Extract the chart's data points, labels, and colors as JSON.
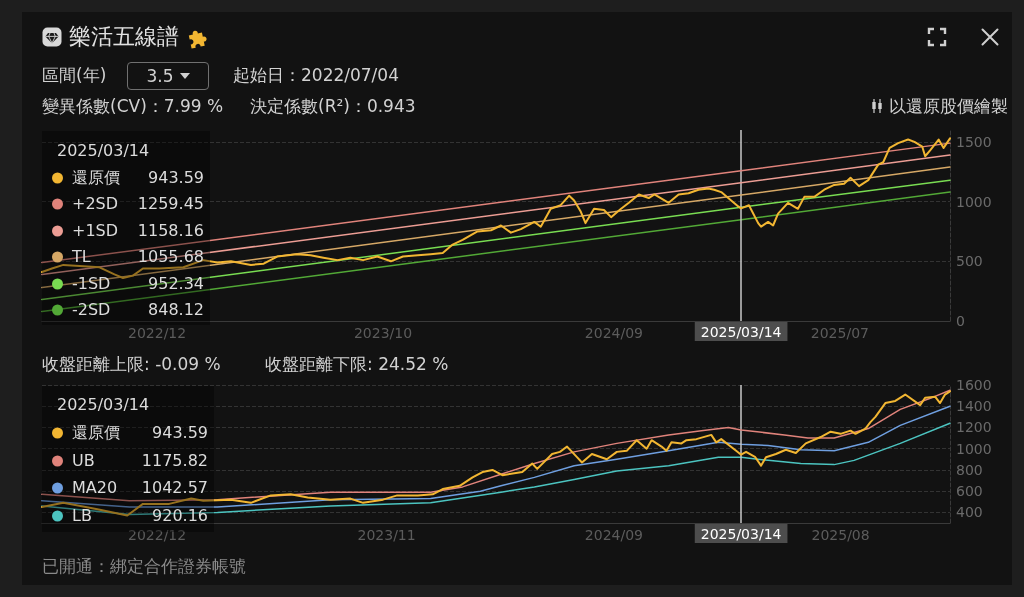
{
  "chart_data": [
    {
      "type": "line",
      "title": "樂活五線譜",
      "annotations": [
        "區間(年)",
        "3.5",
        "起始日：2022/07/04",
        "變異係數(CV)：7.99 %",
        "決定係數(R²)：0.943",
        "以還原股價繪製",
        "943.59",
        "1259.45",
        "1158.16",
        "1055.68",
        "952.34",
        "848.12"
      ],
      "xlim": [
        "2022-07-04",
        "2026-01-02"
      ],
      "xticks": [
        {
          "value": "2022-12-13",
          "label": "2022/12"
        },
        {
          "value": "2023-10-27",
          "label": "2023/10"
        },
        {
          "value": "2024-09-16",
          "label": "2024/09"
        },
        {
          "value": "2025-07-31",
          "label": "2025/07"
        }
      ],
      "ylim": [
        0,
        1600
      ],
      "yticks": [
        0,
        500,
        1000,
        1500
      ],
      "grid": "y",
      "legend": "left",
      "ref_lines": [
        {
          "axis": "x",
          "value": "2025-03-14",
          "label": "2025/03/14",
          "color": "#c8c8c8"
        }
      ],
      "series": [
        {
          "name": "還原價",
          "color": "#f2b632",
          "x": [
            "2022-07-04",
            "2022-07-18",
            "2022-08-03",
            "2022-08-26",
            "2022-09-23",
            "2022-10-14",
            "2022-10-26",
            "2022-11-09",
            "2022-11-23",
            "2022-12-16",
            "2023-01-19",
            "2023-02-16",
            "2023-03-08",
            "2023-03-27",
            "2023-04-24",
            "2023-05-12",
            "2023-05-31",
            "2023-06-28",
            "2023-07-17",
            "2023-08-04",
            "2023-08-24",
            "2023-09-11",
            "2023-09-29",
            "2023-10-19",
            "2023-11-07",
            "2023-11-24",
            "2023-12-15",
            "2024-01-02",
            "2024-01-19",
            "2024-02-02",
            "2024-02-16",
            "2024-03-08",
            "2024-03-27",
            "2024-04-10",
            "2024-04-24",
            "2024-05-08",
            "2024-05-27",
            "2024-06-05",
            "2024-06-19",
            "2024-07-03",
            "2024-07-15",
            "2024-07-22",
            "2024-07-31",
            "2024-08-07",
            "2024-08-19",
            "2024-09-02",
            "2024-09-12",
            "2024-09-26",
            "2024-10-07",
            "2024-10-21",
            "2024-11-04",
            "2024-11-12",
            "2024-12-02",
            "2024-12-16",
            "2024-12-30",
            "2025-01-13",
            "2025-01-27",
            "2025-02-04",
            "2025-02-14",
            "2025-02-28",
            "2025-03-10",
            "2025-03-14",
            "2025-03-25",
            "2025-04-07",
            "2025-04-11",
            "2025-04-21",
            "2025-04-28",
            "2025-05-05",
            "2025-05-19",
            "2025-06-02",
            "2025-06-11",
            "2025-06-25",
            "2025-07-09",
            "2025-07-23",
            "2025-08-06",
            "2025-08-15",
            "2025-08-27",
            "2025-09-09",
            "2025-09-23",
            "2025-09-30",
            "2025-10-09",
            "2025-10-21",
            "2025-11-04",
            "2025-11-13",
            "2025-11-24",
            "2025-11-28",
            "2025-12-05",
            "2025-12-17",
            "2025-12-24",
            "2026-01-02"
          ],
          "values": [
            410,
            440,
            470,
            460,
            450,
            390,
            360,
            380,
            440,
            440,
            450,
            510,
            490,
            500,
            470,
            480,
            540,
            560,
            550,
            530,
            510,
            530,
            510,
            540,
            500,
            540,
            550,
            560,
            570,
            640,
            680,
            750,
            760,
            800,
            740,
            770,
            830,
            790,
            940,
            970,
            1050,
            1010,
            920,
            820,
            940,
            930,
            870,
            940,
            990,
            1060,
            1030,
            1060,
            990,
            1060,
            1070,
            1100,
            1110,
            1100,
            1080,
            1010,
            960,
            943.59,
            970,
            820,
            790,
            830,
            800,
            900,
            990,
            940,
            1040,
            1040,
            1100,
            1140,
            1150,
            1200,
            1130,
            1180,
            1310,
            1330,
            1450,
            1490,
            1520,
            1500,
            1460,
            1380,
            1430,
            1520,
            1450,
            1530
          ]
        },
        {
          "name": "+2SD",
          "color": "#e0837b",
          "x": [
            "2022-07-04",
            "2025-03-14",
            "2026-01-02"
          ],
          "values": [
            490,
            1259.45,
            1490
          ]
        },
        {
          "name": "+1SD",
          "color": "#ec9d94",
          "x": [
            "2022-07-04",
            "2025-03-14",
            "2026-01-02"
          ],
          "values": [
            390,
            1158.16,
            1390
          ]
        },
        {
          "name": "TL",
          "color": "#d6a866",
          "x": [
            "2022-07-04",
            "2025-03-14",
            "2026-01-02"
          ],
          "values": [
            280,
            1055.68,
            1290
          ]
        },
        {
          "name": "-1SD",
          "color": "#79dc52",
          "x": [
            "2022-07-04",
            "2025-03-14",
            "2026-01-02"
          ],
          "values": [
            180,
            952.34,
            1180
          ]
        },
        {
          "name": "-2SD",
          "color": "#52a836",
          "x": [
            "2022-07-04",
            "2025-03-14",
            "2026-01-02"
          ],
          "values": [
            80,
            848.12,
            1080
          ]
        }
      ]
    },
    {
      "type": "line",
      "annotations": [
        "收盤距離上限: -0.09 %",
        "收盤距離下限: 24.52 %",
        "943.59",
        "1175.82",
        "1042.57",
        "920.16",
        "已開通：綁定合作證券帳號"
      ],
      "xlim": [
        "2022-07-04",
        "2026-01-02"
      ],
      "xticks": [
        {
          "value": "2022-12-13",
          "label": "2022/12"
        },
        {
          "value": "2023-11-01",
          "label": "2023/11"
        },
        {
          "value": "2024-09-16",
          "label": "2024/09"
        },
        {
          "value": "2025-08-01",
          "label": "2025/08"
        }
      ],
      "ylim": [
        300,
        1600
      ],
      "yticks": [
        400,
        600,
        800,
        1000,
        1200,
        1400,
        1600
      ],
      "grid": "y",
      "legend": "left",
      "ref_lines": [
        {
          "axis": "x",
          "value": "2025-03-14",
          "label": "2025/03/14",
          "color": "#c8c8c8"
        }
      ],
      "series": [
        {
          "name": "還原價",
          "color": "#f2b632",
          "x": [
            "2022-07-04",
            "2022-08-03",
            "2022-09-20",
            "2022-11-01",
            "2022-11-23",
            "2022-12-30",
            "2023-01-30",
            "2023-02-16",
            "2023-03-27",
            "2023-04-24",
            "2023-05-22",
            "2023-06-19",
            "2023-07-13",
            "2023-08-14",
            "2023-09-11",
            "2023-09-29",
            "2023-10-27",
            "2023-11-16",
            "2023-12-15",
            "2024-01-05",
            "2024-01-19",
            "2024-02-12",
            "2024-03-01",
            "2024-03-15",
            "2024-03-29",
            "2024-04-12",
            "2024-05-10",
            "2024-05-24",
            "2024-05-31",
            "2024-06-21",
            "2024-07-02",
            "2024-07-12",
            "2024-07-26",
            "2024-08-02",
            "2024-08-16",
            "2024-09-06",
            "2024-09-20",
            "2024-10-04",
            "2024-10-18",
            "2024-11-01",
            "2024-11-08",
            "2024-11-22",
            "2024-11-29",
            "2024-12-06",
            "2024-12-20",
            "2024-12-27",
            "2025-01-10",
            "2025-01-31",
            "2025-02-07",
            "2025-02-14",
            "2025-03-07",
            "2025-03-14",
            "2025-03-21",
            "2025-04-03",
            "2025-04-11",
            "2025-04-18",
            "2025-05-02",
            "2025-05-16",
            "2025-05-30",
            "2025-06-13",
            "2025-07-04",
            "2025-07-18",
            "2025-08-01",
            "2025-08-15",
            "2025-08-22",
            "2025-09-05",
            "2025-09-12",
            "2025-09-19",
            "2025-10-03",
            "2025-10-17",
            "2025-10-31",
            "2025-11-21",
            "2025-11-28",
            "2025-12-12",
            "2025-12-19",
            "2025-12-26",
            "2026-01-02"
          ],
          "values": [
            450,
            490,
            430,
            370,
            480,
            480,
            530,
            510,
            520,
            490,
            560,
            570,
            540,
            520,
            530,
            490,
            520,
            560,
            560,
            570,
            620,
            650,
            730,
            780,
            800,
            750,
            780,
            860,
            810,
            950,
            970,
            1020,
            920,
            870,
            950,
            900,
            970,
            980,
            1080,
            1000,
            1080,
            1020,
            980,
            1060,
            1050,
            1080,
            1090,
            1130,
            1060,
            1090,
            980,
            943.59,
            970,
            920,
            840,
            920,
            950,
            990,
            960,
            1050,
            1110,
            1160,
            1140,
            1170,
            1140,
            1190,
            1250,
            1300,
            1430,
            1450,
            1510,
            1410,
            1480,
            1490,
            1430,
            1510,
            1540
          ]
        },
        {
          "name": "UB",
          "color": "#e0837b",
          "x": [
            "2022-07-04",
            "2022-11-04",
            "2023-03-08",
            "2023-08-14",
            "2024-01-02",
            "2024-02-16",
            "2024-04-10",
            "2024-05-27",
            "2024-07-22",
            "2024-09-20",
            "2024-12-02",
            "2025-01-17",
            "2025-02-24",
            "2025-03-14",
            "2025-05-14",
            "2025-06-16",
            "2025-07-23",
            "2025-09-09",
            "2025-10-24",
            "2025-12-11",
            "2026-01-02"
          ],
          "values": [
            570,
            510,
            520,
            590,
            590,
            640,
            760,
            860,
            970,
            1050,
            1130,
            1170,
            1200,
            1175.82,
            1130,
            1100,
            1100,
            1190,
            1370,
            1490,
            1550
          ]
        },
        {
          "name": "MA20",
          "color": "#6f9fe0",
          "x": [
            "2022-07-04",
            "2022-11-04",
            "2023-03-08",
            "2023-08-14",
            "2024-01-02",
            "2024-03-12",
            "2024-04-10",
            "2024-05-27",
            "2024-07-22",
            "2024-09-20",
            "2024-12-02",
            "2025-02-10",
            "2025-03-14",
            "2025-04-21",
            "2025-06-06",
            "2025-07-23",
            "2025-09-09",
            "2025-10-24",
            "2026-01-02"
          ],
          "values": [
            510,
            450,
            450,
            520,
            530,
            600,
            650,
            730,
            840,
            900,
            980,
            1060,
            1042.57,
            1030,
            990,
            980,
            1060,
            1220,
            1400
          ]
        },
        {
          "name": "LB",
          "color": "#4cc4c0",
          "x": [
            "2022-07-04",
            "2022-11-04",
            "2023-03-08",
            "2023-08-14",
            "2024-01-02",
            "2024-04-10",
            "2024-05-27",
            "2024-07-22",
            "2024-09-20",
            "2024-12-02",
            "2025-02-10",
            "2025-03-14",
            "2025-04-21",
            "2025-06-06",
            "2025-07-23",
            "2025-08-20",
            "2025-10-24",
            "2026-01-02"
          ],
          "values": [
            460,
            380,
            400,
            460,
            490,
            590,
            640,
            710,
            790,
            840,
            920,
            920.16,
            890,
            860,
            850,
            890,
            1050,
            1240
          ]
        }
      ]
    }
  ]
}
